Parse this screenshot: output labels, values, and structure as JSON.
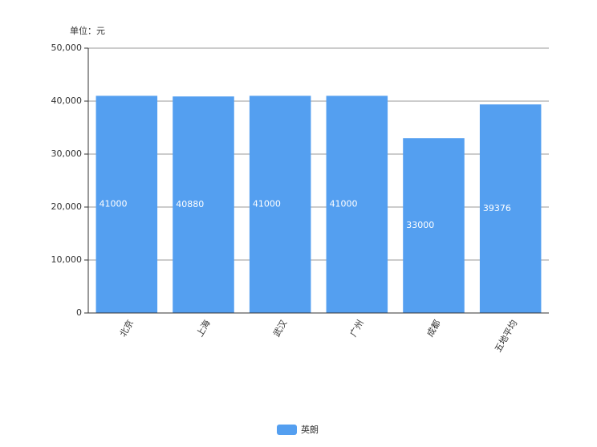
{
  "chart_data": {
    "type": "bar",
    "y_axis_label": "单位：元",
    "categories": [
      "北京",
      "上海",
      "武汉",
      "广州",
      "成都",
      "五地平均"
    ],
    "series": [
      {
        "name": "英朗",
        "color": "#549ff0",
        "values": [
          41000,
          40880,
          41000,
          41000,
          33000,
          39376
        ]
      }
    ],
    "ylim": [
      0,
      50000
    ],
    "yticks": [
      0,
      {
        "value": 10000,
        "label": "10,000"
      },
      {
        "value": 20000,
        "label": "20,000"
      },
      {
        "value": 30000,
        "label": "30,000"
      },
      {
        "value": 40000,
        "label": "40,000"
      },
      {
        "value": 50000,
        "label": "50,000"
      }
    ],
    "grid": true,
    "legend": "bottom"
  }
}
